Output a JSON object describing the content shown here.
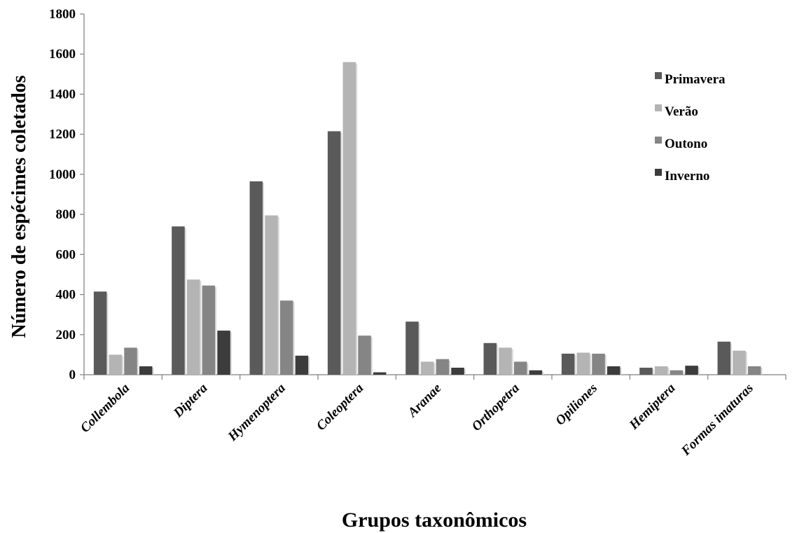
{
  "chart_data": {
    "type": "bar",
    "xlabel": "Grupos taxonômicos",
    "ylabel": "Número de espécimes coletados",
    "ylim": [
      0,
      1800
    ],
    "yticks": [
      0,
      200,
      400,
      600,
      800,
      1000,
      1200,
      1400,
      1600,
      1800
    ],
    "ytick_labels": [
      "0",
      "200",
      "400",
      "600",
      "800",
      "1000",
      "1200",
      "1400",
      "1600",
      "1800"
    ],
    "grid": false,
    "legend_position": "top-right",
    "categories": [
      "Collembola",
      "Diptera",
      "Hymenoptera",
      "Coleoptera",
      "Aranae",
      "Orthopetra",
      "Opiliones",
      "Hemiptera",
      "Formas imaturas"
    ],
    "series": [
      {
        "name": "Primavera",
        "color": "#5a5a5a",
        "values": [
          415,
          740,
          965,
          1215,
          265,
          158,
          105,
          35,
          165
        ]
      },
      {
        "name": "Verão",
        "color": "#b4b4b4",
        "values": [
          100,
          475,
          795,
          1560,
          65,
          135,
          110,
          42,
          120
        ]
      },
      {
        "name": "Outono",
        "color": "#858585",
        "values": [
          135,
          445,
          370,
          195,
          78,
          65,
          105,
          22,
          42
        ]
      },
      {
        "name": "Inverno",
        "color": "#3c3c3c",
        "values": [
          42,
          220,
          95,
          12,
          35,
          22,
          42,
          45,
          0
        ]
      }
    ]
  }
}
